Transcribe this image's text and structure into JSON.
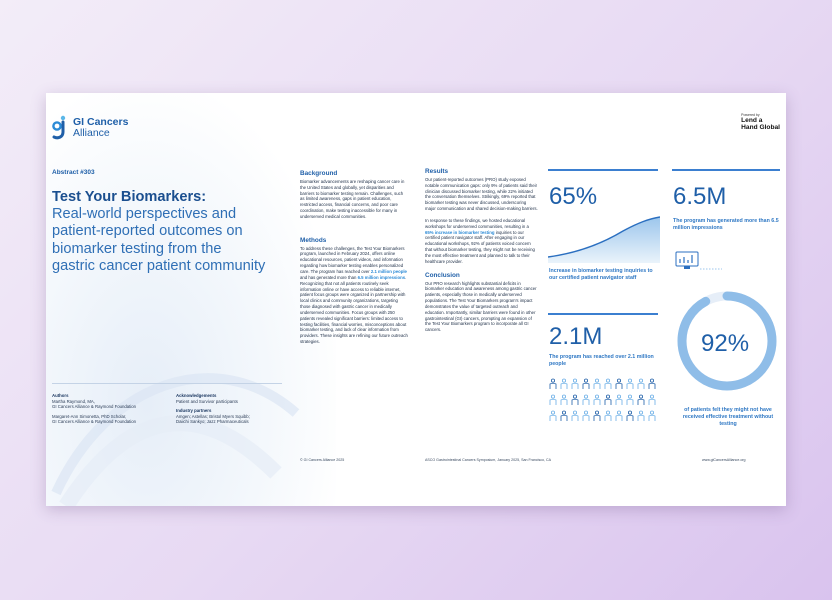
{
  "brand": {
    "name_line1": "GI Cancers",
    "name_line2": "Alliance",
    "powered_label": "Powered by",
    "partner_line1": "Lend a",
    "partner_line2": "Hand Global"
  },
  "abstract_number": "Abstract #303",
  "title": {
    "bold": "Test Your Biomarkers:",
    "rest": "Real-world perspectives and patient-reported outcomes on biomarker testing from the gastric cancer patient community"
  },
  "authors": {
    "heading": "Authors",
    "lines": [
      "Martha Raymond, MA,",
      "GI Cancers Alliance & Raymond Foundation",
      "",
      "Margaret-Ann Simonetta, PhD Scholar,",
      "GI Cancers Alliance & Raymond Foundation"
    ]
  },
  "acknowledgements": {
    "heading": "Acknowledgements",
    "text": "Patient and Survivor participants",
    "partners_heading": "Industry partners",
    "partners_line1": "Amgen; Astellas; Bristol Myers Squibb;",
    "partners_line2": "Daiichi Sankyo; Jazz Pharmaceuticals"
  },
  "background": {
    "heading": "Background",
    "text": "Biomarker advancements are reshaping cancer care in the United States and globally, yet disparities and barriers to biomarker testing remain. Challenges, such as limited awareness, gaps in patient education, restricted access, financial concerns, and poor care coordination, make testing inaccessible for many in underserved medical communities."
  },
  "methods": {
    "heading": "Methods",
    "text_a": "To address these challenges, the Test Your Biomarkers program, launched in February 2024, offers online educational resources, patient videos, and information regarding how biomarker testing enables personalized care. The program has reached over ",
    "hl_a": "2.1 million people",
    "text_b": " and has generated more than ",
    "hl_b": "6.5 million impressions",
    "text_c": ". Recognizing that not all patients routinely seek information online or have access to reliable internet, patient focus groups were organized in partnership with local clinics and community organizations, targeting those diagnosed with gastric cancer in medically underserved communities. Focus groups with 250 patients revealed significant barriers: limited access to testing facilities, financial worries, misconceptions about biomarker testing, and lack of clear information from providers. These insights are refining our future outreach strategies."
  },
  "results": {
    "heading": "Results",
    "text1": "Our patient-reported outcomes (PRO) study exposed notable communication gaps: only 9% of patients said their clinician discussed biomarker testing, while 22% initiated the conversation themselves. Strikingly, 69% reported that biomarker testing was never discussed, underscoring major communication and shared decision-making barriers.",
    "text2_a": "In response to these findings, we hosted educational workshops for underserved communities, resulting in a ",
    "hl": "65% increase in biomarker testing",
    "text2_b": " inquiries to our certified patient navigator staff. After engaging in our educational workshops, 92% of patients voiced concern that without biomarker testing, they might not be receiving the most effective treatment and planned to talk to their healthcare provider."
  },
  "conclusion": {
    "heading": "Conclusion",
    "text": "Our PRO research highlights substantial deficits in biomarker education and awareness among gastric cancer patients, especially those in medically underserved populations. The Test Your Biomarkers program's impact demonstrates the value of targeted outreach and education. Importantly, similar barriers were found in other gastrointestinal (GI) cancers, prompting an expansion of the Test Your Biomarkers program to incorporate all GI cancers."
  },
  "stats": {
    "s65": {
      "value": "65%",
      "desc": "Increase in biomarker testing inquiries to our certified patient navigator staff"
    },
    "s65M": {
      "value": "6.5M",
      "desc": "The program has generated more than 6.5 million impressions"
    },
    "s21M": {
      "value": "2.1M",
      "desc": "The program has reached over 2.1 million people"
    },
    "s92": {
      "value": "92%",
      "fraction": 0.92,
      "desc": "of patients felt they might not have received effective treatment without testing"
    }
  },
  "footer": {
    "copyright": "© GI Cancers Alliance 2025",
    "conference": "ASCO Gastrointestinal Cancers Symposium, January 2025, San Francisco, CA",
    "website": "www.giCancersAlliance.org"
  },
  "colors": {
    "primary": "#1f5fa8",
    "accent": "#2b8ad6",
    "ring": "#8fbde8"
  }
}
